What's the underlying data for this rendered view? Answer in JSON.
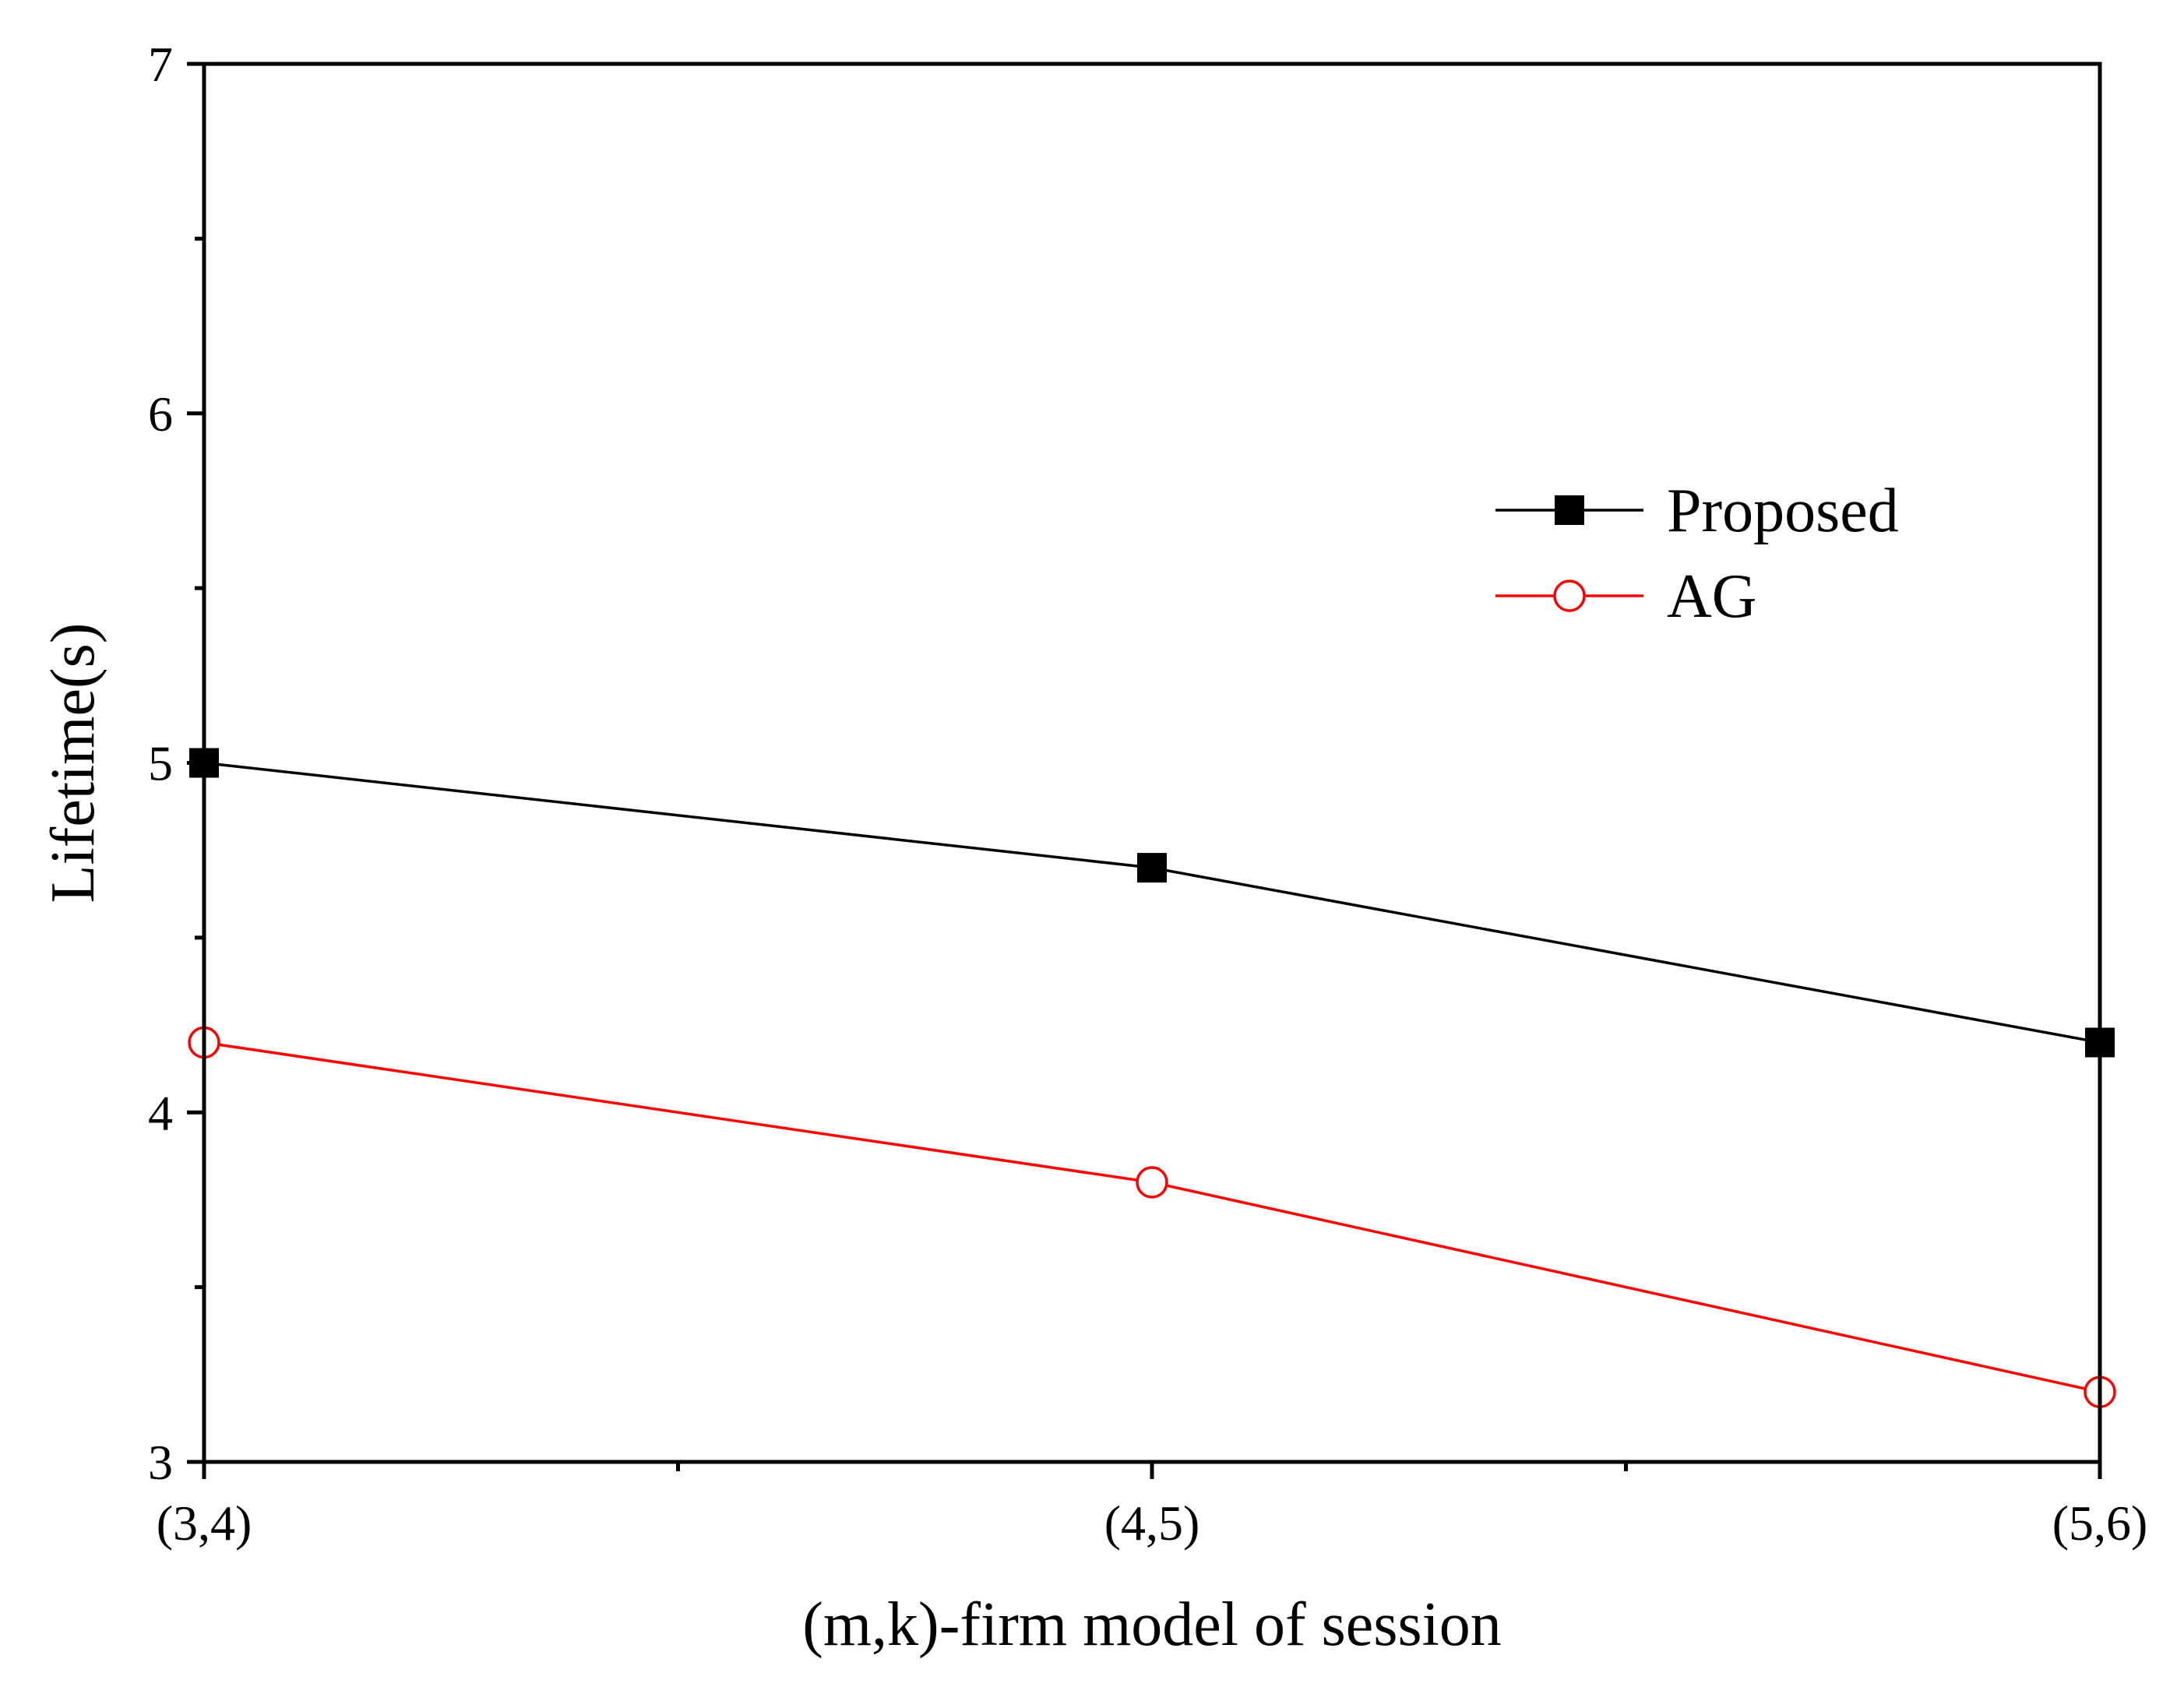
{
  "chart_data": {
    "type": "line",
    "title": "",
    "xlabel": "(m,k)-firm model of session",
    "ylabel": "Lifetime(s)",
    "categories": [
      "(3,4)",
      "(4,5)",
      "(5,6)"
    ],
    "ylim": [
      3,
      7
    ],
    "yticks": [
      3,
      4,
      5,
      6,
      7
    ],
    "yminor_step": 0.5,
    "grid": false,
    "legend_position": "upper-right",
    "series": [
      {
        "name": "Proposed",
        "values": [
          5.0,
          4.7,
          4.2
        ],
        "color": "#000000",
        "marker": "square-filled"
      },
      {
        "name": "AG",
        "values": [
          4.2,
          3.8,
          3.2
        ],
        "color": "#ff0000",
        "marker": "circle-open"
      }
    ]
  }
}
